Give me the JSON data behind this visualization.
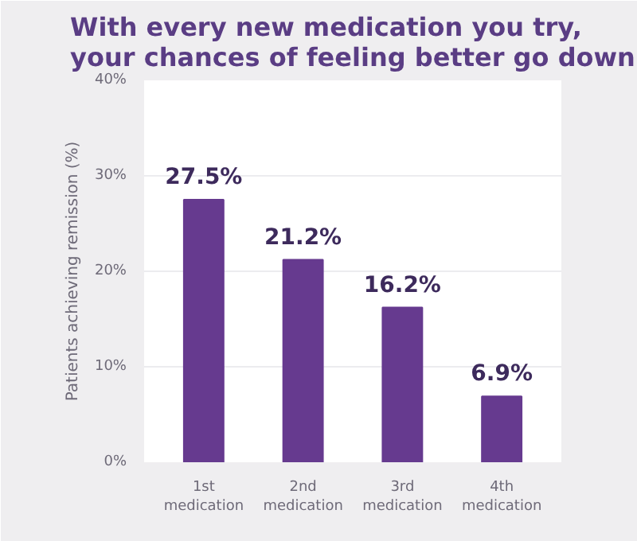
{
  "chart_data": {
    "type": "bar",
    "title": "With every new medication you try,\nyour chances of feeling better go down",
    "ylabel": "Patients achieving remission (%)",
    "categories": [
      "1st medication",
      "2nd medication",
      "3rd medication",
      "4th medication"
    ],
    "values": [
      27.5,
      21.2,
      16.2,
      6.9
    ],
    "color": "#663a8f",
    "value_labels": [
      "27.5%",
      "21.2%",
      "16.2%",
      "6.9%"
    ],
    "ylim": [
      0,
      40
    ],
    "yticks": [
      {
        "value": 0,
        "label": "0%"
      },
      {
        "value": 10,
        "label": "10%"
      },
      {
        "value": 20,
        "label": "20%"
      },
      {
        "value": 30,
        "label": "30%"
      },
      {
        "value": 40,
        "label": "40%"
      }
    ],
    "grid": "y"
  }
}
